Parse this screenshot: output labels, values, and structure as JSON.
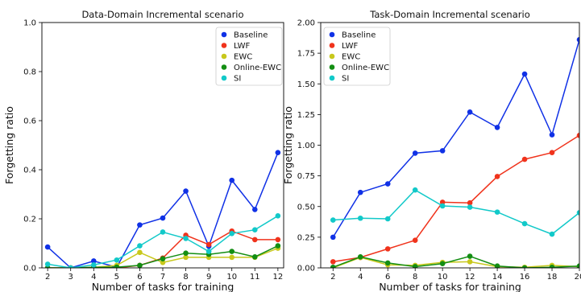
{
  "chart_data": [
    {
      "type": "line",
      "title": "Data-Domain Incremental scenario",
      "xlabel": "Number of tasks for training",
      "ylabel": "Forgetting ratio",
      "x": [
        2,
        3,
        4,
        5,
        6,
        7,
        8,
        9,
        10,
        11,
        12
      ],
      "xticks": [
        "2",
        "3",
        "4",
        "5",
        "6",
        "7",
        "8",
        "9",
        "10",
        "11",
        "12"
      ],
      "xlim": [
        1.75,
        12.25
      ],
      "ylim": [
        0,
        1.0
      ],
      "yticks": [
        "0.0",
        "0.2",
        "0.4",
        "0.6",
        "0.8",
        "1.0"
      ],
      "grid": false,
      "legend_position": "top-right",
      "series": [
        {
          "name": "Baseline",
          "color": "#1031e6",
          "values": [
            0.085,
            0.0,
            0.028,
            0.003,
            0.175,
            0.203,
            0.313,
            0.088,
            0.357,
            0.238,
            0.47
          ]
        },
        {
          "name": "LWF",
          "color": "#f0331c",
          "values": [
            0.0,
            0.0,
            0.002,
            0.0,
            0.01,
            0.04,
            0.133,
            0.095,
            0.15,
            0.115,
            0.115
          ]
        },
        {
          "name": "EWC",
          "color": "#c8c81c",
          "values": [
            0.0,
            0.0,
            0.002,
            0.01,
            0.063,
            0.022,
            0.043,
            0.043,
            0.043,
            0.043,
            0.08
          ]
        },
        {
          "name": "Online-EWC",
          "color": "#138e13",
          "values": [
            0.0,
            0.0,
            0.002,
            0.003,
            0.01,
            0.037,
            0.06,
            0.055,
            0.067,
            0.045,
            0.09
          ]
        },
        {
          "name": "SI",
          "color": "#12c9c9",
          "values": [
            0.015,
            0.0,
            0.012,
            0.032,
            0.09,
            0.146,
            0.12,
            0.067,
            0.14,
            0.155,
            0.212
          ]
        }
      ]
    },
    {
      "type": "line",
      "title": "Task-Domain Incremental scenario",
      "xlabel": "Number of tasks for training",
      "ylabel": "Forgetting ratio",
      "x": [
        2,
        4,
        6,
        8,
        10,
        12,
        14,
        16,
        18,
        20
      ],
      "xticks": [
        "2",
        "4",
        "6",
        "8",
        "10",
        "12",
        "14",
        "16",
        "18",
        "20"
      ],
      "xlim": [
        1.1,
        20.0
      ],
      "ylim": [
        0,
        2.0
      ],
      "yticks": [
        "0.00",
        "0.25",
        "0.50",
        "0.75",
        "1.00",
        "1.25",
        "1.50",
        "1.75",
        "2.00"
      ],
      "grid": false,
      "legend_position": "top-left",
      "series": [
        {
          "name": "Baseline",
          "color": "#1031e6",
          "values": [
            0.25,
            0.615,
            0.685,
            0.935,
            0.955,
            1.27,
            1.145,
            1.58,
            1.085,
            1.86
          ]
        },
        {
          "name": "LWF",
          "color": "#f0331c",
          "values": [
            0.05,
            0.085,
            0.155,
            0.225,
            0.535,
            0.53,
            0.745,
            0.885,
            0.94,
            1.08
          ]
        },
        {
          "name": "EWC",
          "color": "#c8c81c",
          "values": [
            0.0,
            0.085,
            0.025,
            0.02,
            0.045,
            0.05,
            0.01,
            0.005,
            0.02,
            0.01
          ]
        },
        {
          "name": "Online-EWC",
          "color": "#138e13",
          "values": [
            0.005,
            0.09,
            0.04,
            0.01,
            0.035,
            0.095,
            0.015,
            0.0,
            0.005,
            0.015
          ]
        },
        {
          "name": "SI",
          "color": "#12c9c9",
          "values": [
            0.39,
            0.405,
            0.4,
            0.635,
            0.505,
            0.495,
            0.455,
            0.36,
            0.275,
            0.45
          ]
        }
      ]
    }
  ]
}
